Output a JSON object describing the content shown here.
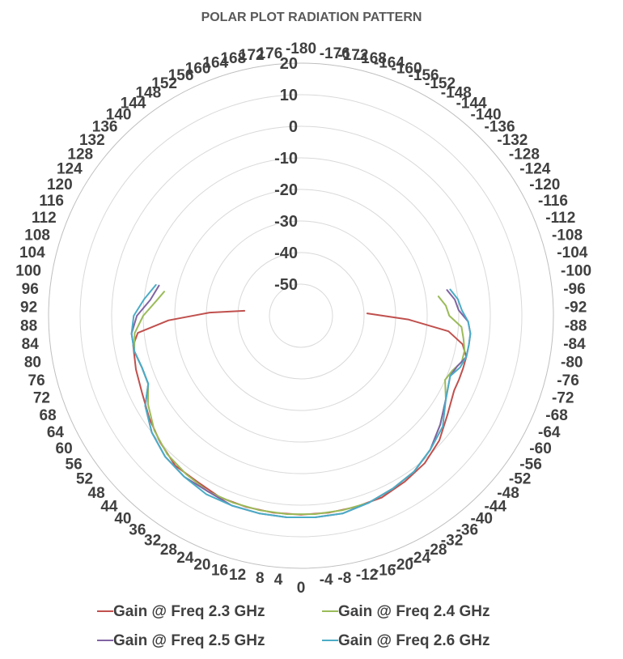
{
  "chart_data": {
    "type": "line",
    "subtype": "polar",
    "title": "POLAR PLOT RADIATION PATTERN",
    "radial_axis": {
      "min": -60,
      "max": 20,
      "ticks": [
        -50,
        -40,
        -30,
        -20,
        -10,
        0,
        10,
        20
      ]
    },
    "angular_axis": {
      "direction": "clockwise",
      "zero_position": "bottom",
      "labels_left": [
        4,
        8,
        12,
        16,
        20,
        24,
        28,
        32,
        36,
        40,
        44,
        48,
        52,
        56,
        60,
        64,
        68,
        72,
        76,
        80,
        84,
        88,
        92,
        96,
        100,
        104,
        108,
        112,
        116,
        120,
        124,
        128,
        132,
        136,
        140,
        144,
        148,
        152,
        156,
        160,
        164,
        168,
        172,
        176
      ],
      "labels_right": [
        -4,
        -8,
        -12,
        -16,
        -20,
        -24,
        -28,
        -32,
        -36,
        -40,
        -44,
        -48,
        -52,
        -56,
        -60,
        -64,
        -68,
        -72,
        -76,
        -80,
        -84,
        -88,
        -92,
        -96,
        -100,
        -104,
        -108,
        -112,
        -116,
        -120,
        -124,
        -128,
        -132,
        -136,
        -140,
        -144,
        -148,
        -152,
        -156,
        -160,
        -164,
        -168,
        -172,
        -176
      ],
      "label_bottom": "0",
      "label_top": "-180"
    },
    "legend_position": "bottom",
    "series": [
      {
        "name": "Gain @ Freq 2.3 GHz",
        "color": "#C0504D",
        "points": [
          [
            -92,
            -39
          ],
          [
            -88,
            -26
          ],
          [
            -84,
            -13
          ],
          [
            -80,
            -8
          ],
          [
            -76,
            -6
          ],
          [
            -72,
            -6
          ],
          [
            -68,
            -6
          ],
          [
            -64,
            -6
          ],
          [
            -56,
            -4
          ],
          [
            -48,
            -1
          ],
          [
            -40,
            1
          ],
          [
            -32,
            2
          ],
          [
            -24,
            3
          ],
          [
            -16,
            3
          ],
          [
            -8,
            3
          ],
          [
            0,
            3
          ],
          [
            8,
            3
          ],
          [
            16,
            3
          ],
          [
            24,
            3
          ],
          [
            32,
            2
          ],
          [
            40,
            2
          ],
          [
            48,
            0
          ],
          [
            56,
            -2
          ],
          [
            64,
            -4
          ],
          [
            72,
            -5
          ],
          [
            80,
            -6
          ],
          [
            84,
            -8
          ],
          [
            88,
            -18
          ],
          [
            92,
            -31
          ],
          [
            95,
            -42
          ]
        ]
      },
      {
        "name": "Gain @ Freq 2.4 GHz",
        "color": "#9BBB59",
        "points": [
          [
            -98,
            -16
          ],
          [
            -94,
            -14
          ],
          [
            -90,
            -13
          ],
          [
            -86,
            -9
          ],
          [
            -82,
            -8
          ],
          [
            -78,
            -7
          ],
          [
            -74,
            -7
          ],
          [
            -70,
            -9
          ],
          [
            -66,
            -10
          ],
          [
            -60,
            -7
          ],
          [
            -52,
            -4
          ],
          [
            -44,
            -1
          ],
          [
            -36,
            1
          ],
          [
            -28,
            2
          ],
          [
            -20,
            3
          ],
          [
            -12,
            3
          ],
          [
            -4,
            3
          ],
          [
            4,
            3
          ],
          [
            12,
            3
          ],
          [
            20,
            3
          ],
          [
            28,
            3
          ],
          [
            36,
            2
          ],
          [
            44,
            1
          ],
          [
            52,
            -1
          ],
          [
            60,
            -4
          ],
          [
            66,
            -7
          ],
          [
            72,
            -7
          ],
          [
            78,
            -6
          ],
          [
            84,
            -7
          ],
          [
            90,
            -10
          ],
          [
            96,
            -14
          ],
          [
            100,
            -16
          ]
        ]
      },
      {
        "name": "Gain @ Freq 2.5 GHz",
        "color": "#8064A2",
        "points": [
          [
            -100,
            -13
          ],
          [
            -96,
            -11
          ],
          [
            -92,
            -10
          ],
          [
            -88,
            -7
          ],
          [
            -84,
            -6
          ],
          [
            -80,
            -6
          ],
          [
            -76,
            -6
          ],
          [
            -72,
            -8
          ],
          [
            -68,
            -9
          ],
          [
            -60,
            -7
          ],
          [
            -52,
            -4
          ],
          [
            -44,
            -1
          ],
          [
            -36,
            1
          ],
          [
            -28,
            2
          ],
          [
            -20,
            3
          ],
          [
            -12,
            4
          ],
          [
            -4,
            4
          ],
          [
            4,
            4
          ],
          [
            12,
            4
          ],
          [
            20,
            4
          ],
          [
            28,
            3
          ],
          [
            36,
            3
          ],
          [
            44,
            2
          ],
          [
            52,
            0
          ],
          [
            60,
            -3
          ],
          [
            66,
            -7
          ],
          [
            72,
            -7
          ],
          [
            78,
            -6
          ],
          [
            84,
            -6
          ],
          [
            90,
            -8
          ],
          [
            96,
            -12
          ],
          [
            102,
            -14
          ]
        ]
      },
      {
        "name": "Gain @ Freq 2.6 GHz",
        "color": "#4BACC6",
        "points": [
          [
            -100,
            -12
          ],
          [
            -96,
            -10
          ],
          [
            -92,
            -9
          ],
          [
            -88,
            -7
          ],
          [
            -84,
            -6
          ],
          [
            -80,
            -6
          ],
          [
            -76,
            -6
          ],
          [
            -72,
            -7
          ],
          [
            -68,
            -9
          ],
          [
            -60,
            -7
          ],
          [
            -52,
            -3
          ],
          [
            -44,
            -1
          ],
          [
            -36,
            1
          ],
          [
            -28,
            2
          ],
          [
            -20,
            3
          ],
          [
            -12,
            4
          ],
          [
            -4,
            4
          ],
          [
            4,
            4
          ],
          [
            12,
            4
          ],
          [
            20,
            4
          ],
          [
            28,
            4
          ],
          [
            36,
            3
          ],
          [
            44,
            2
          ],
          [
            52,
            0
          ],
          [
            60,
            -3
          ],
          [
            66,
            -7
          ],
          [
            72,
            -7
          ],
          [
            78,
            -6
          ],
          [
            84,
            -6
          ],
          [
            90,
            -7
          ],
          [
            96,
            -10
          ],
          [
            102,
            -13
          ]
        ]
      }
    ]
  }
}
